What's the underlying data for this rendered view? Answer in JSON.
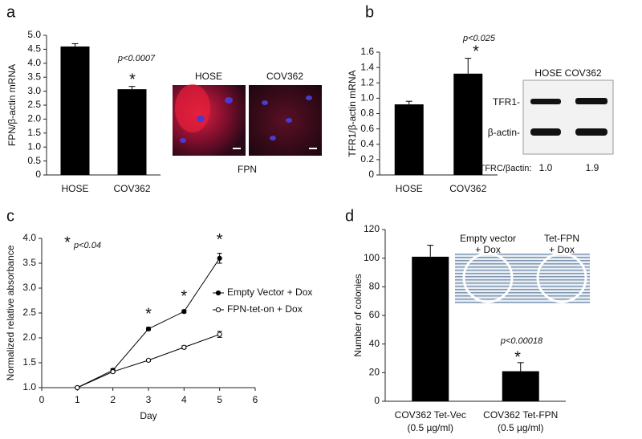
{
  "chart_data": [
    {
      "type": "bar",
      "panel": "a",
      "ylabel": "FPN/β-actin mRNA",
      "categories": [
        "HOSE",
        "COV362"
      ],
      "values": [
        4.6,
        3.07
      ],
      "errors": [
        0.1,
        0.1
      ],
      "color": "#000000",
      "ylim": [
        0,
        5
      ],
      "yticks": [
        0,
        0.5,
        {
          "value": 1,
          "label": "1.0"
        },
        1.5,
        {
          "value": 2,
          "label": "2.0"
        },
        2.5,
        {
          "value": 3,
          "label": "3.0"
        },
        3.5,
        {
          "value": 4,
          "label": "4.0"
        },
        4.5,
        {
          "value": 5,
          "label": "5.0"
        }
      ],
      "p_value": "p<0.0007",
      "significance": "*",
      "inset": {
        "labels": [
          "HOSE",
          "COV362"
        ],
        "caption": "FPN"
      }
    },
    {
      "type": "bar",
      "panel": "b",
      "ylabel": "TFR1/β-actin mRNA",
      "categories": [
        "HOSE",
        "COV362"
      ],
      "values": [
        0.92,
        1.32
      ],
      "errors": [
        0.04,
        0.2
      ],
      "color": "#000000",
      "ylim": [
        0,
        1.6
      ],
      "yticks": [
        0,
        0.2,
        0.4,
        0.6,
        0.8,
        {
          "value": 1,
          "label": "1.0"
        },
        1.2,
        1.4,
        1.6
      ],
      "p_value": "p<0.025",
      "significance": "*",
      "inset": {
        "header": "HOSE COV362",
        "rows": [
          "TFR1-",
          "β-actin-"
        ],
        "ratio_label": "TFRC/βactin:",
        "ratios": [
          "1.0",
          "1.9"
        ]
      }
    },
    {
      "type": "line",
      "panel": "c",
      "xlabel": "Day",
      "ylabel": "Normalized relative absorbance",
      "x": [
        1,
        2,
        3,
        4,
        5
      ],
      "series": [
        {
          "name": "Empty Vector + Dox",
          "color": "#000000",
          "marker_fill": "#000000",
          "values": [
            1.0,
            1.35,
            2.18,
            2.53,
            3.6
          ],
          "errors": [
            0.01,
            0.03,
            0.03,
            0.03,
            0.1
          ]
        },
        {
          "name": "FPN-tet-on + Dox",
          "color": "#000000",
          "marker_fill": "#ffffff",
          "values": [
            1.0,
            1.32,
            1.55,
            1.81,
            2.07
          ],
          "errors": [
            0.01,
            0.02,
            0.02,
            0.03,
            0.06
          ]
        }
      ],
      "xlim": [
        0,
        6
      ],
      "xticks": [
        0,
        1,
        2,
        3,
        4,
        5,
        6
      ],
      "ylim": [
        1,
        4
      ],
      "yticks": [
        {
          "value": 1,
          "label": "1.0"
        },
        1.5,
        {
          "value": 2,
          "label": "2.0"
        },
        2.5,
        {
          "value": 3,
          "label": "3.0"
        },
        3.5,
        {
          "value": 4,
          "label": "4.0"
        }
      ],
      "p_value": "p<0.04",
      "significance": "*",
      "legend": "right"
    },
    {
      "type": "bar",
      "panel": "d",
      "ylabel": "Number of colonies",
      "categories": [
        [
          "COV362 Tet-Vec",
          "(0.5 µg/ml)"
        ],
        [
          "COV362 Tet-FPN",
          "(0.5 µg/ml)"
        ]
      ],
      "values": [
        101,
        21
      ],
      "errors": [
        8,
        6
      ],
      "color": "#000000",
      "ylim": [
        0,
        120
      ],
      "yticks": [
        0,
        20,
        40,
        60,
        80,
        100,
        120
      ],
      "p_value": "p<0.00018",
      "significance": "*",
      "inset": {
        "labels": [
          [
            "Empty vector",
            "+ Dox"
          ],
          [
            "Tet-FPN",
            "+ Dox"
          ]
        ]
      }
    }
  ]
}
